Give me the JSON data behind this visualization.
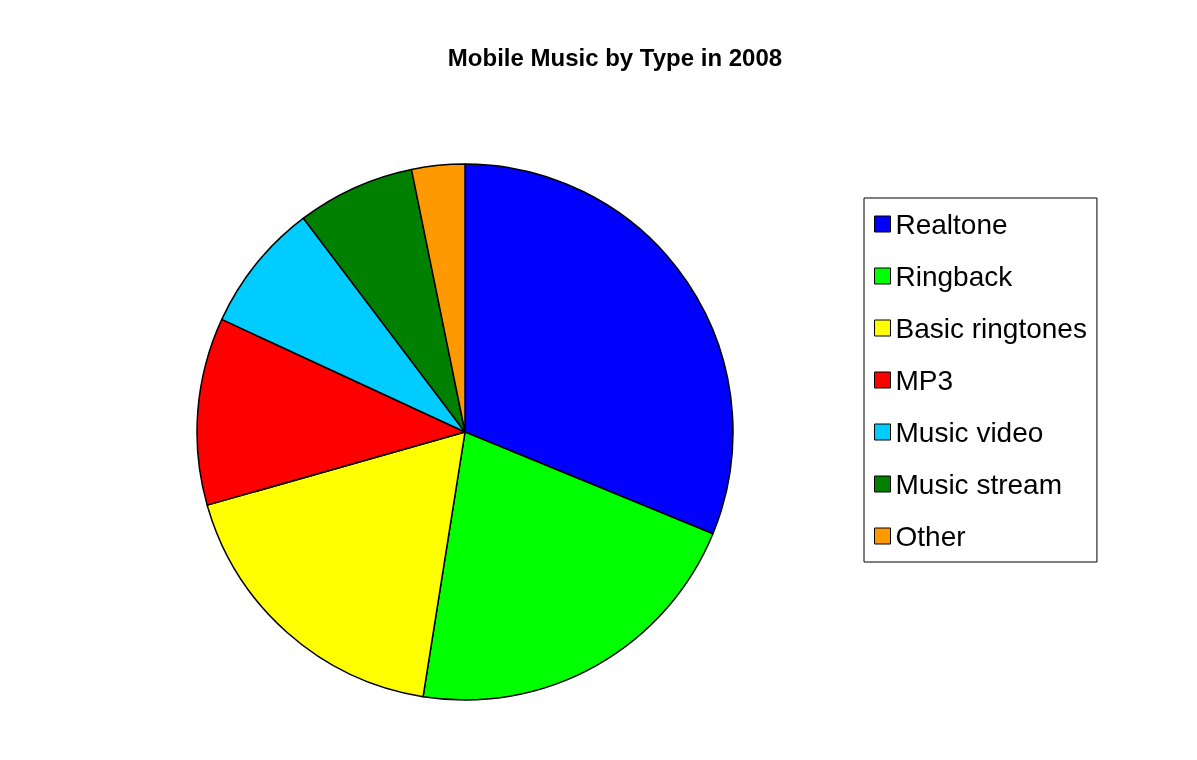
{
  "chart_data": {
    "type": "pie",
    "title": "Mobile Music by Type in 2008",
    "categories": [
      "Realtone",
      "Ringback",
      "Basic ringtones",
      "MP3",
      "Music video",
      "Music stream",
      "Other"
    ],
    "values": [
      31.2,
      21.3,
      18.1,
      11.3,
      7.8,
      7.1,
      3.2
    ],
    "colors": [
      "#0000ff",
      "#00ff00",
      "#ffff00",
      "#ff0000",
      "#00ccff",
      "#008000",
      "#ff9900"
    ],
    "legend": "right"
  }
}
